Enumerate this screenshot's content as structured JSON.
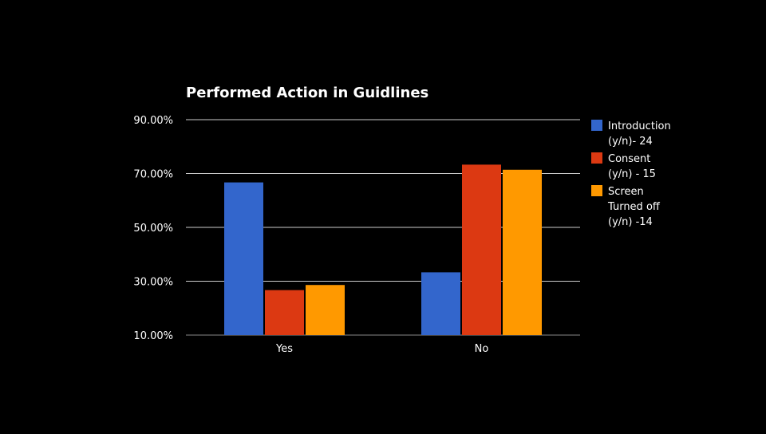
{
  "chart_data": {
    "type": "bar",
    "title": "Performed Action in Guidlines",
    "xlabel": "",
    "ylabel": "",
    "categories": [
      "Yes",
      "No"
    ],
    "series": [
      {
        "name": "Introduction (y/n)- 24",
        "legend_lines": [
          "Introduction",
          "(y/n)- 24"
        ],
        "color": "#3366cc",
        "values": [
          66.7,
          33.3
        ]
      },
      {
        "name": "Consent (y/n) - 15",
        "legend_lines": [
          "Consent",
          "(y/n) - 15"
        ],
        "color": "#dc3912",
        "values": [
          26.7,
          73.3
        ]
      },
      {
        "name": "Screen Turned off (y/n) -14",
        "legend_lines": [
          "Screen",
          "Turned off",
          "(y/n) -14"
        ],
        "color": "#ff9900",
        "values": [
          28.6,
          71.4
        ]
      }
    ],
    "yticks": [
      "10.00%",
      "30.00%",
      "50.00%",
      "70.00%",
      "90.00%"
    ],
    "ytick_values": [
      10,
      30,
      50,
      70,
      90
    ],
    "ylim": [
      10,
      90
    ],
    "grid": true,
    "legend_position": "right",
    "background": "#000000",
    "text_color": "#ffffff",
    "grid_color": "#cccccc"
  }
}
